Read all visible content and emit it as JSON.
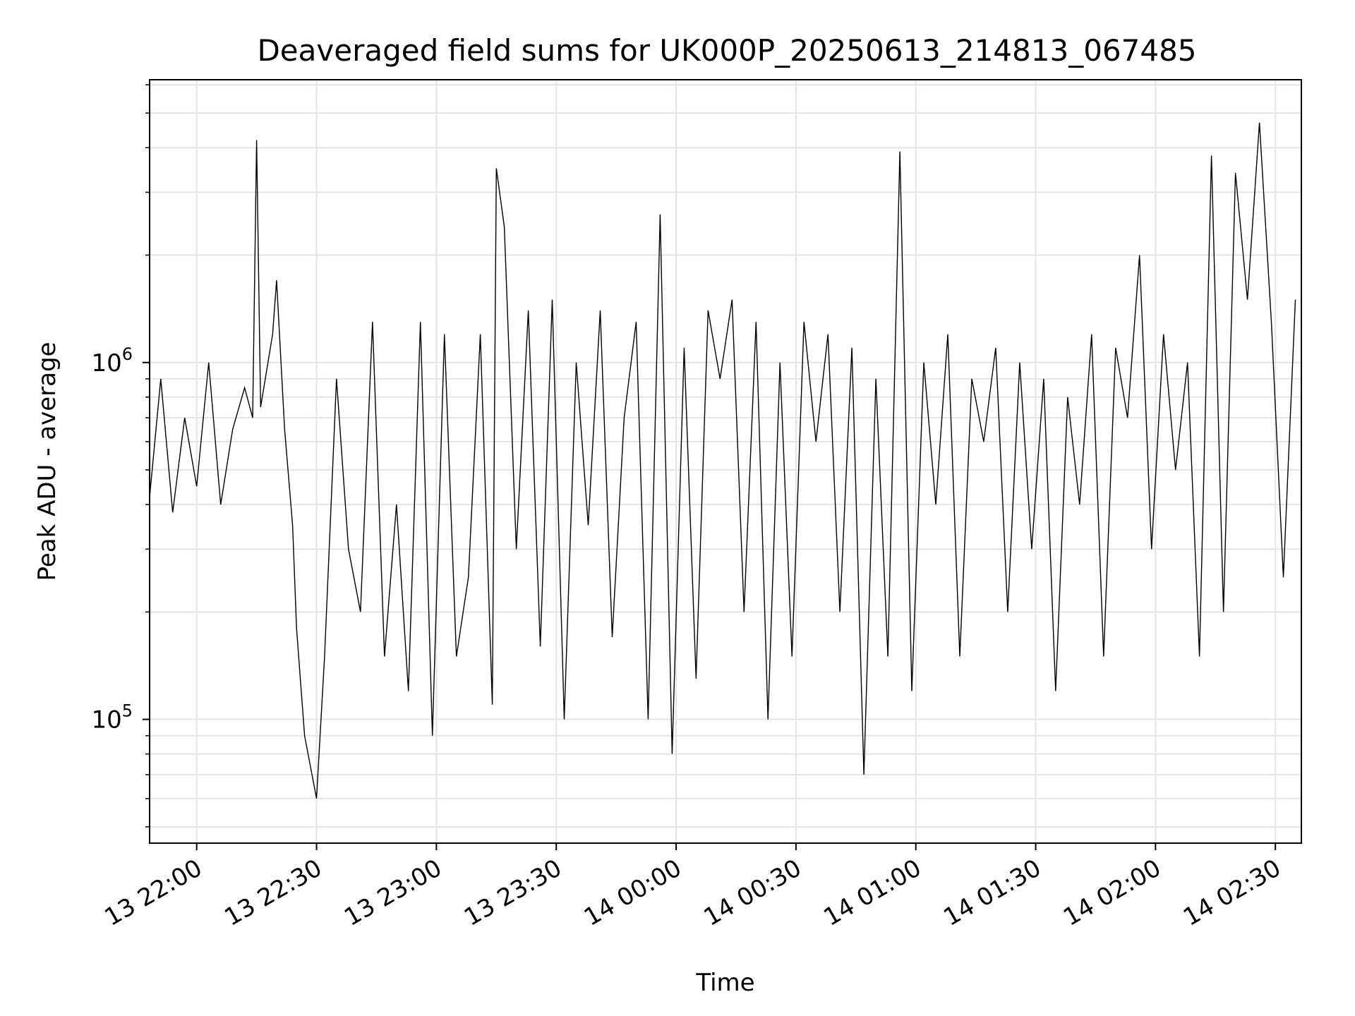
{
  "chart_data": {
    "type": "line",
    "title": "Deaveraged field sums for UK000P_20250613_214813_067485",
    "xlabel": "Time",
    "ylabel": "Peak ADU - average",
    "yscale": "log",
    "ylim": [
      45000,
      6200000
    ],
    "xlim": [
      "2025-06-13 21:48:13",
      "2025-06-14 02:36:30"
    ],
    "x_ticks": [
      {
        "time": "2025-06-13 22:00",
        "label": "13 22:00"
      },
      {
        "time": "2025-06-13 22:30",
        "label": "13 22:30"
      },
      {
        "time": "2025-06-13 23:00",
        "label": "13 23:00"
      },
      {
        "time": "2025-06-13 23:30",
        "label": "13 23:30"
      },
      {
        "time": "2025-06-14 00:00",
        "label": "14 00:00"
      },
      {
        "time": "2025-06-14 00:30",
        "label": "14 00:30"
      },
      {
        "time": "2025-06-14 01:00",
        "label": "14 01:00"
      },
      {
        "time": "2025-06-14 01:30",
        "label": "14 01:30"
      },
      {
        "time": "2025-06-14 02:00",
        "label": "14 02:00"
      },
      {
        "time": "2025-06-14 02:30",
        "label": "14 02:30"
      }
    ],
    "y_ticks": [
      {
        "value": 100000,
        "base": "10",
        "exp": "5"
      },
      {
        "value": 1000000,
        "base": "10",
        "exp": "6"
      }
    ],
    "grid": true,
    "line_color": "#000000",
    "grid_color": "#e5e5e5",
    "series": [
      {
        "x": [
          "2025-06-13 21:48",
          "2025-06-13 21:51",
          "2025-06-13 21:54",
          "2025-06-13 21:57",
          "2025-06-13 22:00",
          "2025-06-13 22:03",
          "2025-06-13 22:06",
          "2025-06-13 22:09",
          "2025-06-13 22:12",
          "2025-06-13 22:14",
          "2025-06-13 22:15",
          "2025-06-13 22:16",
          "2025-06-13 22:19",
          "2025-06-13 22:20",
          "2025-06-13 22:22",
          "2025-06-13 22:24",
          "2025-06-13 22:25",
          "2025-06-13 22:27",
          "2025-06-13 22:30",
          "2025-06-13 22:32",
          "2025-06-13 22:35",
          "2025-06-13 22:38",
          "2025-06-13 22:41",
          "2025-06-13 22:44",
          "2025-06-13 22:47",
          "2025-06-13 22:50",
          "2025-06-13 22:53",
          "2025-06-13 22:56",
          "2025-06-13 22:59",
          "2025-06-13 23:02",
          "2025-06-13 23:05",
          "2025-06-13 23:08",
          "2025-06-13 23:11",
          "2025-06-13 23:14",
          "2025-06-13 23:15",
          "2025-06-13 23:17",
          "2025-06-13 23:20",
          "2025-06-13 23:23",
          "2025-06-13 23:26",
          "2025-06-13 23:29",
          "2025-06-13 23:32",
          "2025-06-13 23:35",
          "2025-06-13 23:38",
          "2025-06-13 23:41",
          "2025-06-13 23:44",
          "2025-06-13 23:47",
          "2025-06-13 23:50",
          "2025-06-13 23:53",
          "2025-06-13 23:56",
          "2025-06-13 23:59",
          "2025-06-14 00:02",
          "2025-06-14 00:05",
          "2025-06-14 00:08",
          "2025-06-14 00:11",
          "2025-06-14 00:14",
          "2025-06-14 00:17",
          "2025-06-14 00:20",
          "2025-06-14 00:23",
          "2025-06-14 00:26",
          "2025-06-14 00:29",
          "2025-06-14 00:32",
          "2025-06-14 00:35",
          "2025-06-14 00:38",
          "2025-06-14 00:41",
          "2025-06-14 00:44",
          "2025-06-14 00:47",
          "2025-06-14 00:50",
          "2025-06-14 00:53",
          "2025-06-14 00:56",
          "2025-06-14 00:59",
          "2025-06-14 01:02",
          "2025-06-14 01:05",
          "2025-06-14 01:08",
          "2025-06-14 01:11",
          "2025-06-14 01:14",
          "2025-06-14 01:17",
          "2025-06-14 01:20",
          "2025-06-14 01:23",
          "2025-06-14 01:26",
          "2025-06-14 01:29",
          "2025-06-14 01:32",
          "2025-06-14 01:35",
          "2025-06-14 01:38",
          "2025-06-14 01:41",
          "2025-06-14 01:44",
          "2025-06-14 01:47",
          "2025-06-14 01:50",
          "2025-06-14 01:53",
          "2025-06-14 01:56",
          "2025-06-14 01:59",
          "2025-06-14 02:02",
          "2025-06-14 02:05",
          "2025-06-14 02:08",
          "2025-06-14 02:11",
          "2025-06-14 02:14",
          "2025-06-14 02:17",
          "2025-06-14 02:20",
          "2025-06-14 02:23",
          "2025-06-14 02:26",
          "2025-06-14 02:29",
          "2025-06-14 02:32",
          "2025-06-14 02:35"
        ],
        "y": [
          420000,
          900000,
          380000,
          700000,
          450000,
          1000000,
          400000,
          650000,
          850000,
          700000,
          4200000,
          750000,
          1200000,
          1700000,
          650000,
          350000,
          180000,
          90000,
          60000,
          150000,
          900000,
          300000,
          200000,
          1300000,
          150000,
          400000,
          120000,
          1300000,
          90000,
          1200000,
          150000,
          250000,
          1200000,
          110000,
          3500000,
          2400000,
          300000,
          1400000,
          160000,
          1500000,
          100000,
          1000000,
          350000,
          1400000,
          170000,
          700000,
          1300000,
          100000,
          2600000,
          80000,
          1100000,
          130000,
          1400000,
          900000,
          1500000,
          200000,
          1300000,
          100000,
          1000000,
          150000,
          1300000,
          600000,
          1200000,
          200000,
          1100000,
          70000,
          900000,
          150000,
          3900000,
          120000,
          1000000,
          400000,
          1200000,
          150000,
          900000,
          600000,
          1100000,
          200000,
          1000000,
          300000,
          900000,
          120000,
          800000,
          400000,
          1200000,
          150000,
          1100000,
          700000,
          2000000,
          300000,
          1200000,
          500000,
          1000000,
          150000,
          3800000,
          200000,
          3400000,
          1500000,
          4700000,
          1300000,
          250000,
          1500000
        ]
      }
    ]
  }
}
